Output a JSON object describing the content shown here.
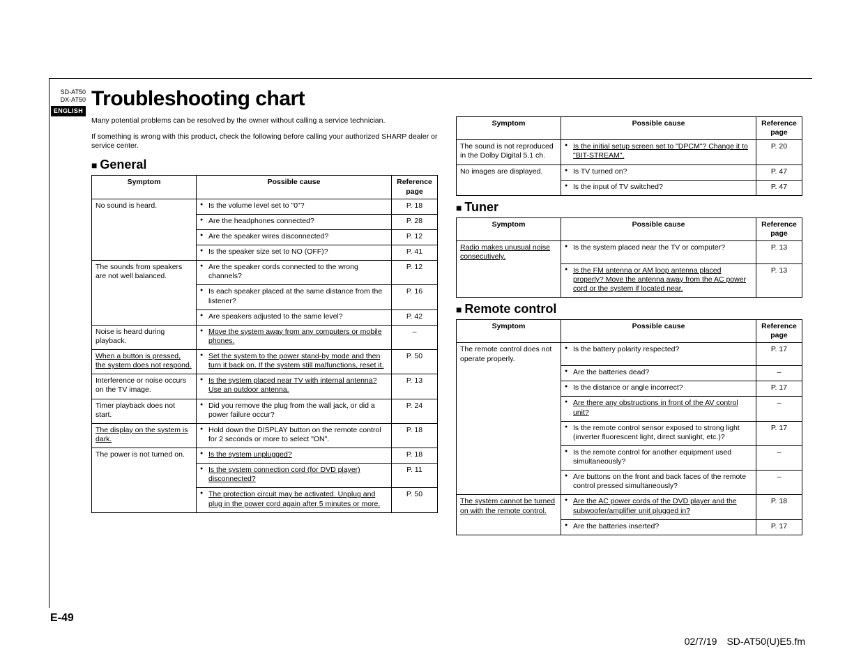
{
  "header": {
    "model1": "SD-AT50",
    "model2": "DX-AT50",
    "lang": "ENGLISH"
  },
  "title": "Troubleshooting chart",
  "intro1": "Many potential problems can be resolved by the owner without calling a service technician.",
  "intro2": "If something is wrong with this product, check the following before calling your authorized SHARP dealer or service center.",
  "sections": {
    "general": "General",
    "tuner": "Tuner",
    "remote": "Remote control"
  },
  "thead": {
    "symptom": "Symptom",
    "cause": "Possible cause",
    "ref": "Reference page"
  },
  "general": {
    "r1": {
      "sym": "No sound is heard.",
      "c": "Is the volume level set to \"0\"?",
      "p": "P. 18"
    },
    "r1b": {
      "c": "Are the headphones connected?",
      "p": "P. 28"
    },
    "r1c": {
      "c": "Are the speaker wires disconnected?",
      "p": "P. 12"
    },
    "r1d": {
      "c": "Is the speaker size set to NO (OFF)?",
      "p": "P. 41"
    },
    "r2": {
      "sym": "The sounds from speakers are not well balanced.",
      "c": "Are the speaker cords connected to the wrong channels?",
      "p": "P. 12"
    },
    "r2b": {
      "c": "Is each speaker placed at the same distance from the listener?",
      "p": "P. 16"
    },
    "r2c": {
      "c": "Are speakers adjusted to the same level?",
      "p": "P. 42"
    },
    "r3": {
      "sym": "Noise is heard during playback.",
      "c": "Move the system away from any computers or mobile phones.",
      "p": "–"
    },
    "r4": {
      "sym": "When a button is pressed, the system does not respond.",
      "c": "Set the system to the power stand-by mode and then turn it back on. If the system still malfunctions, reset it.",
      "p": "P. 50"
    },
    "r5": {
      "sym": "Interference or noise occurs on the TV image.",
      "c": "Is the system placed near TV with internal antenna? Use an outdoor antenna.",
      "p": "P. 13"
    },
    "r6": {
      "sym": "Timer playback does not start.",
      "c": "Did you remove the plug from the wall jack, or did a power failure occur?",
      "p": "P. 24"
    },
    "r7": {
      "sym": "The display on the system is dark.",
      "c": "Hold down the DISPLAY button on the remote control for 2 seconds or more to select \"ON\".",
      "p": "P. 18"
    },
    "r8": {
      "sym": "The power is not turned on.",
      "c": "Is the system unplugged?",
      "p": "P. 18"
    },
    "r8b": {
      "c": "Is the system connection cord (for DVD player) disconnected?",
      "p": "P. 11"
    },
    "r8c": {
      "c": "The protection circuit may be activated. Unplug and plug in the power cord again after 5 minutes or more.",
      "p": "P. 50"
    }
  },
  "general2": {
    "r1": {
      "sym": "The sound is not reproduced in the Dolby Digital 5.1 ch.",
      "c": "Is the initial setup screen set to \"DPCM\"? Change it to \"BIT-STREAM\".",
      "p": "P. 20"
    },
    "r2": {
      "sym": "No images are displayed.",
      "c": "Is TV turned on?",
      "p": "P. 47"
    },
    "r2b": {
      "c": "Is the input of TV switched?",
      "p": "P. 47"
    }
  },
  "tuner": {
    "r1": {
      "sym": "Radio makes unusual noise consecutively.",
      "c": "Is the system placed near the TV or computer?",
      "p": "P. 13"
    },
    "r1b": {
      "c": "Is the FM antenna or AM loop antenna placed properly? Move the antenna away from the AC power cord or the system if located near.",
      "p": "P. 13"
    }
  },
  "remote": {
    "r1": {
      "sym": "The remote control does not operate properly.",
      "c": "Is the battery polarity respected?",
      "p": "P. 17"
    },
    "r1b": {
      "c": "Are the batteries dead?",
      "p": "–"
    },
    "r1c": {
      "c": "Is the distance or angle incorrect?",
      "p": "P. 17"
    },
    "r1d": {
      "c": "Are there any obstructions in front of the AV control unit?",
      "p": "–"
    },
    "r1e": {
      "c": "Is the remote control sensor exposed to strong light (inverter fluorescent light, direct sunlight, etc.)?",
      "p": "P. 17"
    },
    "r1f": {
      "c": "Is the remote control for another equipment used simultaneously?",
      "p": "–"
    },
    "r1g": {
      "c": "Are buttons on the front and back faces of the remote control pressed simultaneously?",
      "p": "–"
    },
    "r2": {
      "sym": "The system cannot be turned on with the remote control.",
      "c": "Are the AC power cords of the DVD player and the subwoofer/amplifier unit plugged in?",
      "p": "P. 18"
    },
    "r2b": {
      "c": "Are the batteries inserted?",
      "p": "P. 17"
    }
  },
  "footer": {
    "page": "E-49",
    "stamp": "02/7/19 SD-AT50(U)E5.fm"
  }
}
